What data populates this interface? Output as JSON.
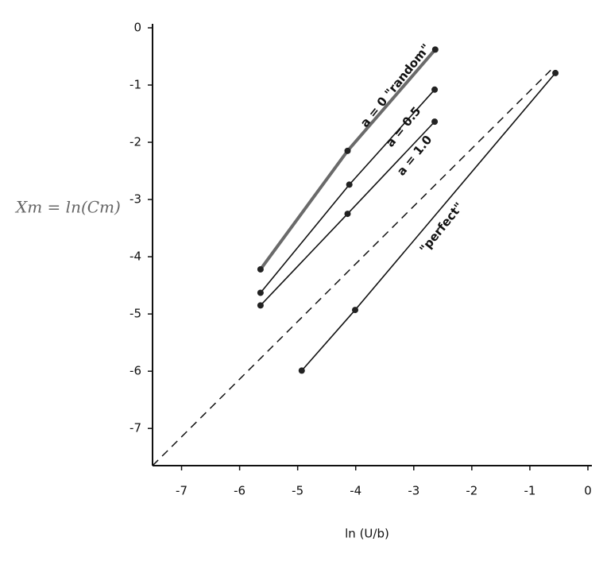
{
  "chart_data": {
    "type": "line",
    "x_label": "ln (U/b)",
    "y_label": "Xm = ln(Cm)",
    "xlim": [
      -7.5,
      0
    ],
    "ylim": [
      -7.65,
      0
    ],
    "xticks": [
      -7,
      -6,
      -5,
      -4,
      -3,
      -2,
      -1,
      0
    ],
    "yticks": [
      0,
      -1,
      -2,
      -3,
      -4,
      -5,
      -6,
      -7
    ],
    "series": [
      {
        "name": "a = 0  \"random\"",
        "color": "#6a6a6a",
        "x": [
          -5.64,
          -4.14,
          -2.63
        ],
        "values": [
          -4.22,
          -2.15,
          -0.38
        ]
      },
      {
        "name": "a = 0.5",
        "color": "#111111",
        "x": [
          -5.64,
          -4.11,
          -2.64
        ],
        "values": [
          -4.63,
          -2.74,
          -1.08
        ]
      },
      {
        "name": "a = 1.0",
        "color": "#111111",
        "x": [
          -5.64,
          -4.14,
          -2.64
        ],
        "values": [
          -4.85,
          -3.25,
          -1.64
        ]
      },
      {
        "name": "\"perfect\"",
        "color": "#111111",
        "x": [
          -4.93,
          -4.01,
          -0.56
        ],
        "values": [
          -5.99,
          -4.93,
          -0.79
        ]
      },
      {
        "color": "#111111",
        "style": "dashed",
        "x": [
          -7.5,
          -0.64
        ],
        "values": [
          -7.65,
          -0.74
        ]
      }
    ]
  }
}
